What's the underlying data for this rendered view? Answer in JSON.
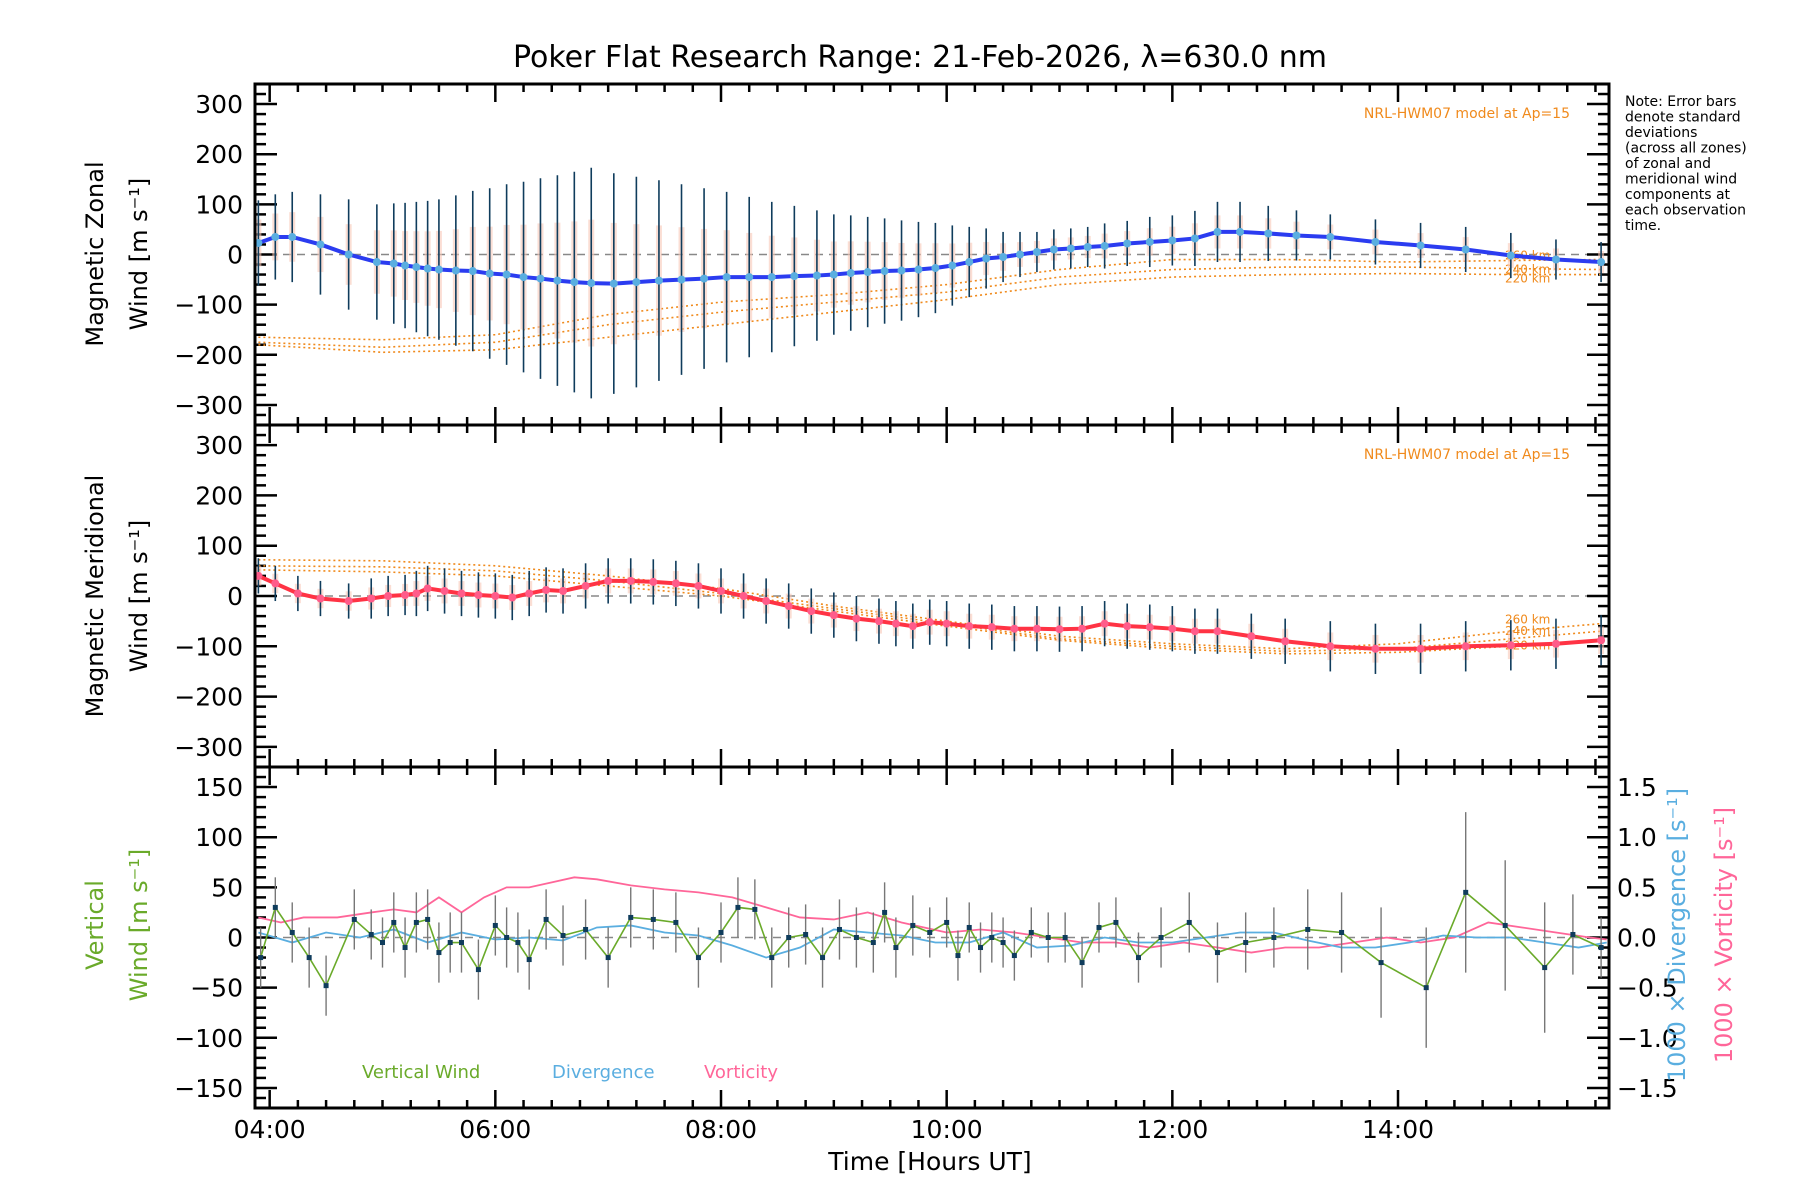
{
  "title": "Poker Flat Research Range: 21-Feb-2026, λ=630.0 nm",
  "note_lines": [
    "Note: Error bars",
    "denote standard",
    "deviations",
    "(across all zones)",
    "of zonal and",
    "meridional wind",
    "components at",
    "each observation",
    "time."
  ],
  "colors": {
    "zonal": "#2b3cf0",
    "meridional": "#ff3344",
    "marker_zonal": "#5aaee0",
    "marker_meridional": "#ff5c8a",
    "model": "#f08a1c",
    "errbar": "#0f3c5c",
    "vertical": "#6aaa2a",
    "divergence": "#5aaee0",
    "vorticity": "#ff6699",
    "zone_scatter": "#b8b8e0",
    "zero_line": "#888888"
  },
  "chart_data": [
    {
      "type": "line",
      "panel": "zonal",
      "ylabel_line1": "Magnetic Zonal",
      "ylabel_line2": "Wind [m s⁻¹]",
      "model_label": "NRL-HWM07 model at Ap=15",
      "model_altitudes": [
        "260 km",
        "240 km",
        "220 km"
      ],
      "xlim_hours": [
        3.87,
        15.87
      ],
      "ylim": [
        -340,
        340
      ],
      "yticks": [
        300,
        200,
        100,
        0,
        -100,
        -200,
        -300
      ],
      "x": [
        3.9,
        4.05,
        4.2,
        4.45,
        4.7,
        4.95,
        5.1,
        5.2,
        5.3,
        5.4,
        5.5,
        5.65,
        5.8,
        5.95,
        6.1,
        6.25,
        6.4,
        6.55,
        6.7,
        6.85,
        7.05,
        7.25,
        7.45,
        7.65,
        7.85,
        8.05,
        8.25,
        8.45,
        8.65,
        8.85,
        9.0,
        9.15,
        9.3,
        9.45,
        9.6,
        9.75,
        9.9,
        10.05,
        10.2,
        10.35,
        10.5,
        10.65,
        10.8,
        10.95,
        11.1,
        11.25,
        11.4,
        11.6,
        11.8,
        12.0,
        12.2,
        12.4,
        12.6,
        12.85,
        13.1,
        13.4,
        13.8,
        14.2,
        14.6,
        15.0,
        15.4,
        15.8
      ],
      "values": [
        23,
        35,
        35,
        20,
        0,
        -15,
        -18,
        -22,
        -25,
        -28,
        -30,
        -32,
        -33,
        -38,
        -40,
        -45,
        -48,
        -52,
        -55,
        -57,
        -58,
        -55,
        -52,
        -50,
        -48,
        -45,
        -45,
        -45,
        -43,
        -42,
        -40,
        -37,
        -35,
        -33,
        -32,
        -30,
        -27,
        -22,
        -15,
        -8,
        -5,
        0,
        5,
        10,
        12,
        15,
        17,
        22,
        25,
        28,
        32,
        45,
        45,
        42,
        38,
        35,
        25,
        18,
        10,
        -2,
        -10,
        -15
      ],
      "error": [
        85,
        85,
        90,
        100,
        110,
        115,
        120,
        125,
        130,
        135,
        140,
        150,
        160,
        170,
        180,
        190,
        200,
        210,
        220,
        230,
        220,
        210,
        200,
        190,
        180,
        170,
        160,
        150,
        140,
        130,
        120,
        115,
        110,
        105,
        100,
        95,
        90,
        80,
        70,
        60,
        50,
        45,
        40,
        40,
        40,
        40,
        45,
        45,
        50,
        50,
        55,
        60,
        60,
        55,
        50,
        45,
        45,
        45,
        45,
        45,
        40,
        40
      ],
      "model": {
        "260 km": {
          "x": [
            3.9,
            5.0,
            6.0,
            7.0,
            8.0,
            9.0,
            10.0,
            11.0,
            12.0,
            13.0,
            14.0,
            15.0,
            15.8
          ],
          "y": [
            -165,
            -170,
            -160,
            -120,
            -95,
            -80,
            -60,
            -30,
            -10,
            -10,
            -15,
            -12,
            -10
          ]
        },
        "240 km": {
          "x": [
            3.9,
            5.0,
            6.0,
            7.0,
            8.0,
            9.0,
            10.0,
            11.0,
            12.0,
            13.0,
            14.0,
            15.0,
            15.8
          ],
          "y": [
            -175,
            -185,
            -175,
            -140,
            -115,
            -95,
            -75,
            -45,
            -30,
            -25,
            -25,
            -28,
            -30
          ]
        },
        "220 km": {
          "x": [
            3.9,
            5.0,
            6.0,
            7.0,
            8.0,
            9.0,
            10.0,
            11.0,
            12.0,
            13.0,
            14.0,
            15.0,
            15.8
          ],
          "y": [
            -180,
            -195,
            -190,
            -165,
            -140,
            -115,
            -90,
            -60,
            -45,
            -40,
            -38,
            -40,
            -40
          ]
        }
      }
    },
    {
      "type": "line",
      "panel": "meridional",
      "ylabel_line1": "Magnetic Meridional",
      "ylabel_line2": "Wind [m s⁻¹]",
      "model_label": "NRL-HWM07 model at Ap=15",
      "model_altitudes": [
        "260 km",
        "240 km",
        "220 km"
      ],
      "xlim_hours": [
        3.87,
        15.87
      ],
      "ylim": [
        -340,
        340
      ],
      "yticks": [
        300,
        200,
        100,
        0,
        -100,
        -200,
        -300
      ],
      "x": [
        3.9,
        4.05,
        4.25,
        4.45,
        4.7,
        4.9,
        5.05,
        5.2,
        5.3,
        5.4,
        5.55,
        5.7,
        5.85,
        6.0,
        6.15,
        6.3,
        6.45,
        6.6,
        6.8,
        7.0,
        7.2,
        7.4,
        7.6,
        7.8,
        8.0,
        8.2,
        8.4,
        8.6,
        8.8,
        9.0,
        9.2,
        9.4,
        9.55,
        9.7,
        9.85,
        10.0,
        10.2,
        10.4,
        10.6,
        10.8,
        11.0,
        11.2,
        11.4,
        11.6,
        11.8,
        12.0,
        12.2,
        12.4,
        12.7,
        13.0,
        13.4,
        13.8,
        14.2,
        14.6,
        15.0,
        15.4,
        15.8
      ],
      "values": [
        40,
        25,
        5,
        -5,
        -10,
        -5,
        0,
        2,
        5,
        15,
        10,
        5,
        2,
        0,
        -3,
        5,
        12,
        10,
        20,
        30,
        30,
        28,
        25,
        20,
        10,
        0,
        -10,
        -20,
        -30,
        -38,
        -45,
        -50,
        -55,
        -60,
        -52,
        -55,
        -60,
        -62,
        -65,
        -65,
        -66,
        -65,
        -55,
        -60,
        -62,
        -65,
        -70,
        -70,
        -80,
        -90,
        -100,
        -105,
        -105,
        -100,
        -98,
        -95,
        -88
      ],
      "error": [
        35,
        35,
        35,
        35,
        35,
        40,
        40,
        40,
        45,
        45,
        45,
        45,
        45,
        45,
        45,
        45,
        45,
        45,
        45,
        45,
        45,
        45,
        45,
        45,
        45,
        45,
        45,
        45,
        45,
        45,
        45,
        45,
        45,
        45,
        45,
        45,
        45,
        45,
        45,
        45,
        45,
        45,
        45,
        45,
        45,
        45,
        45,
        45,
        45,
        45,
        50,
        50,
        50,
        50,
        50,
        50,
        50
      ],
      "model": {
        "260 km": {
          "x": [
            3.9,
            5.0,
            6.0,
            7.0,
            8.0,
            9.0,
            10.0,
            11.0,
            12.0,
            13.0,
            14.0,
            15.0,
            15.8
          ],
          "y": [
            72,
            70,
            60,
            40,
            15,
            -20,
            -50,
            -80,
            -95,
            -105,
            -95,
            -70,
            -55
          ]
        },
        "240 km": {
          "x": [
            3.9,
            5.0,
            6.0,
            7.0,
            8.0,
            9.0,
            10.0,
            11.0,
            12.0,
            13.0,
            14.0,
            15.0,
            15.8
          ],
          "y": [
            60,
            58,
            50,
            30,
            5,
            -25,
            -55,
            -85,
            -100,
            -110,
            -105,
            -85,
            -70
          ]
        },
        "220 km": {
          "x": [
            3.9,
            5.0,
            6.0,
            7.0,
            8.0,
            9.0,
            10.0,
            11.0,
            12.0,
            13.0,
            14.0,
            15.0,
            15.8
          ],
          "y": [
            52,
            48,
            40,
            20,
            0,
            -30,
            -60,
            -88,
            -105,
            -115,
            -112,
            -100,
            -90
          ]
        }
      }
    },
    {
      "type": "line",
      "panel": "vertical",
      "ylabel_line1": "Vertical",
      "ylabel_line2": "Wind [m s⁻¹]",
      "y2label_div": "1000 × Divergence [s⁻¹]",
      "y2label_vort": "1000 × Vorticity [s⁻¹]",
      "legend": [
        "Vertical Wind",
        "Divergence",
        "Vorticity"
      ],
      "xlim_hours": [
        3.87,
        15.87
      ],
      "ylim": [
        -170,
        170
      ],
      "yticks": [
        150,
        100,
        50,
        0,
        -50,
        -100,
        -150
      ],
      "y2lim": [
        -1.7,
        1.7
      ],
      "y2ticks": [
        "1.5",
        "1.0",
        "0.5",
        "0.0",
        "-0.5",
        "-1.0",
        "-1.5"
      ],
      "vertical_wind": {
        "x": [
          3.92,
          4.05,
          4.2,
          4.35,
          4.5,
          4.75,
          4.9,
          5.0,
          5.1,
          5.2,
          5.3,
          5.4,
          5.5,
          5.6,
          5.7,
          5.85,
          6.0,
          6.1,
          6.2,
          6.3,
          6.45,
          6.6,
          6.8,
          7.0,
          7.2,
          7.4,
          7.6,
          7.8,
          8.0,
          8.15,
          8.3,
          8.45,
          8.6,
          8.75,
          8.9,
          9.05,
          9.2,
          9.35,
          9.45,
          9.55,
          9.7,
          9.85,
          10.0,
          10.1,
          10.2,
          10.3,
          10.4,
          10.5,
          10.6,
          10.75,
          10.9,
          11.05,
          11.2,
          11.35,
          11.5,
          11.7,
          11.9,
          12.15,
          12.4,
          12.65,
          12.9,
          13.2,
          13.5,
          13.85,
          14.25,
          14.6,
          14.95,
          15.3,
          15.55,
          15.8
        ],
        "values": [
          -20,
          30,
          5,
          -20,
          -48,
          18,
          3,
          -5,
          15,
          -10,
          15,
          18,
          -15,
          -5,
          -5,
          -32,
          12,
          0,
          -5,
          -22,
          18,
          2,
          8,
          -20,
          20,
          18,
          15,
          -20,
          5,
          30,
          28,
          -20,
          0,
          3,
          -20,
          8,
          0,
          -5,
          25,
          -10,
          12,
          5,
          15,
          -18,
          10,
          -10,
          0,
          -5,
          -18,
          5,
          0,
          0,
          -25,
          10,
          15,
          -20,
          0,
          15,
          -15,
          -5,
          0,
          8,
          5,
          -25,
          -50,
          45,
          12,
          -30,
          3,
          -10
        ],
        "error": [
          30,
          30,
          30,
          30,
          30,
          30,
          25,
          25,
          30,
          30,
          30,
          30,
          30,
          30,
          30,
          30,
          30,
          30,
          30,
          30,
          30,
          30,
          30,
          30,
          30,
          30,
          30,
          30,
          30,
          30,
          30,
          30,
          30,
          30,
          30,
          30,
          30,
          30,
          30,
          30,
          30,
          25,
          25,
          25,
          25,
          25,
          25,
          25,
          25,
          25,
          25,
          25,
          25,
          25,
          25,
          25,
          30,
          30,
          30,
          30,
          30,
          40,
          40,
          55,
          60,
          80,
          65,
          65,
          40,
          30
        ]
      },
      "divergence": {
        "x": [
          3.9,
          4.2,
          4.5,
          4.8,
          5.1,
          5.4,
          5.7,
          6.0,
          6.3,
          6.6,
          6.9,
          7.2,
          7.5,
          7.8,
          8.1,
          8.4,
          8.7,
          9.0,
          9.3,
          9.6,
          9.9,
          10.2,
          10.5,
          10.8,
          11.1,
          11.4,
          11.7,
          12.0,
          12.3,
          12.6,
          12.9,
          13.2,
          13.5,
          13.8,
          14.1,
          14.4,
          14.7,
          15.0,
          15.3,
          15.6,
          15.85
        ],
        "values": [
          0.05,
          -0.05,
          0.05,
          0.0,
          0.08,
          -0.05,
          0.05,
          -0.02,
          0.0,
          -0.03,
          0.1,
          0.12,
          0.05,
          0.02,
          -0.08,
          -0.2,
          -0.1,
          0.08,
          0.05,
          0.02,
          -0.05,
          -0.05,
          0.05,
          -0.1,
          -0.08,
          0.0,
          -0.05,
          -0.05,
          0.0,
          0.05,
          0.05,
          -0.03,
          -0.1,
          -0.1,
          -0.05,
          0.02,
          0.0,
          0.0,
          -0.05,
          -0.1,
          -0.05
        ]
      },
      "vorticity": {
        "x": [
          3.9,
          4.1,
          4.3,
          4.6,
          4.9,
          5.1,
          5.3,
          5.5,
          5.7,
          5.9,
          6.1,
          6.3,
          6.5,
          6.7,
          6.9,
          7.2,
          7.5,
          7.8,
          8.1,
          8.4,
          8.7,
          9.0,
          9.3,
          9.6,
          9.8,
          10.0,
          10.3,
          10.6,
          10.9,
          11.2,
          11.5,
          11.8,
          12.1,
          12.4,
          12.7,
          13.0,
          13.3,
          13.6,
          13.9,
          14.2,
          14.5,
          14.8,
          15.1,
          15.4,
          15.7,
          15.85
        ],
        "values": [
          0.2,
          0.15,
          0.2,
          0.2,
          0.25,
          0.28,
          0.25,
          0.4,
          0.25,
          0.4,
          0.5,
          0.5,
          0.55,
          0.6,
          0.58,
          0.52,
          0.48,
          0.45,
          0.4,
          0.3,
          0.2,
          0.18,
          0.25,
          0.15,
          0.1,
          0.05,
          0.08,
          0.05,
          0.0,
          -0.05,
          -0.05,
          -0.1,
          -0.05,
          -0.1,
          -0.15,
          -0.1,
          -0.1,
          -0.05,
          0.0,
          -0.05,
          0.0,
          0.15,
          0.1,
          0.05,
          0.0,
          -0.02
        ]
      }
    }
  ],
  "x_axis": {
    "label": "Time [Hours UT]",
    "ticks": [
      "04:00",
      "06:00",
      "08:00",
      "10:00",
      "12:00",
      "14:00"
    ],
    "tick_hours": [
      4,
      6,
      8,
      10,
      12,
      14
    ]
  }
}
